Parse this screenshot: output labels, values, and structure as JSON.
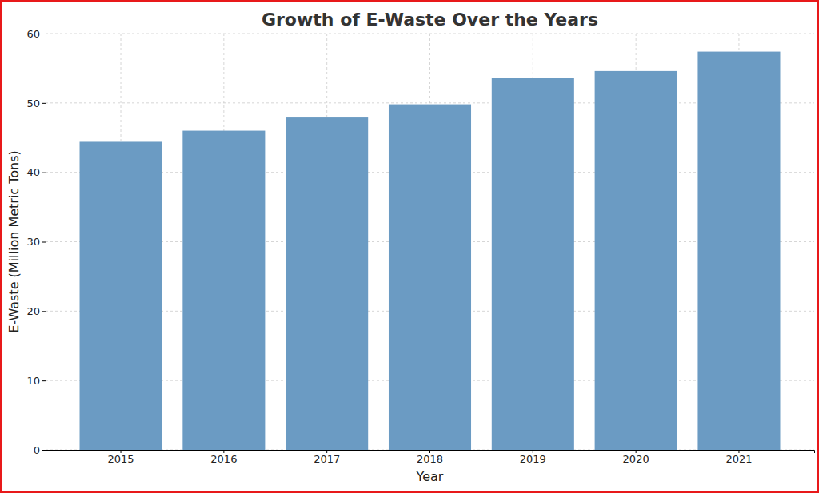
{
  "chart_data": {
    "type": "bar",
    "title": "Growth of E-Waste Over the Years",
    "x_label": "Year",
    "y_label": "E-Waste (Million Metric Tons)",
    "categories": [
      "2015",
      "2016",
      "2017",
      "2018",
      "2019",
      "2020",
      "2021"
    ],
    "values": [
      44.4,
      46.0,
      47.9,
      49.8,
      53.6,
      54.6,
      57.4
    ],
    "color": "#6b9bc3",
    "ylim": [
      0,
      60
    ],
    "yticks": [
      0,
      10,
      20,
      30,
      40,
      50,
      60
    ],
    "grid": true
  }
}
